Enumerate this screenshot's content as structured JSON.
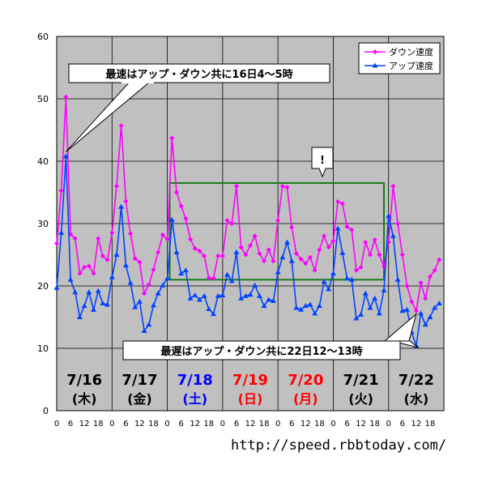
{
  "chart_data": {
    "type": "line",
    "ylim": [
      0,
      60
    ],
    "yticks": [
      0,
      10,
      20,
      30,
      40,
      50,
      60
    ],
    "x_range": [
      0,
      168
    ],
    "grid": true,
    "legend_position": "top-right",
    "colors": {
      "download": "#ff00ff",
      "upload": "#0044ff",
      "plot_bg": "#c0c0c0",
      "highlight": "#1a7a1a",
      "callout_bg": "#ffffff"
    },
    "day_ticks": [
      "0",
      "6",
      "12",
      "18"
    ],
    "days": [
      {
        "date": "7/16",
        "dow": "(木)",
        "color": "#000000"
      },
      {
        "date": "7/17",
        "dow": "(金)",
        "color": "#000000"
      },
      {
        "date": "7/18",
        "dow": "(土)",
        "color": "#0000ff"
      },
      {
        "date": "7/19",
        "dow": "(日)",
        "color": "#ff0000"
      },
      {
        "date": "7/20",
        "dow": "(月)",
        "color": "#ff0000"
      },
      {
        "date": "7/21",
        "dow": "(火)",
        "color": "#000000"
      },
      {
        "date": "7/22",
        "dow": "(水)",
        "color": "#000000"
      }
    ],
    "series": [
      {
        "name": "ダウン速度",
        "color": "#ff00ff",
        "marker": "diamond",
        "x": [
          0,
          2,
          4,
          6,
          8,
          10,
          12,
          14,
          16,
          18,
          20,
          22,
          24,
          26,
          28,
          30,
          32,
          34,
          36,
          38,
          40,
          42,
          44,
          46,
          48,
          50,
          52,
          54,
          56,
          58,
          60,
          62,
          64,
          66,
          68,
          70,
          72,
          74,
          76,
          78,
          80,
          82,
          84,
          86,
          88,
          90,
          92,
          94,
          96,
          98,
          100,
          102,
          104,
          106,
          108,
          110,
          112,
          114,
          116,
          118,
          120,
          122,
          124,
          126,
          128,
          130,
          132,
          134,
          136,
          138,
          140,
          142,
          144,
          146,
          148,
          150,
          152,
          154,
          156,
          158,
          160,
          162,
          164,
          166
        ],
        "y": [
          26.8,
          35.3,
          50.3,
          28.3,
          27.6,
          22,
          23,
          23.2,
          22,
          27.6,
          24.8,
          24.2,
          28.5,
          36,
          45.7,
          33.6,
          28.4,
          24.4,
          23.8,
          18.8,
          20.2,
          22.6,
          25.4,
          28.2,
          27.5,
          43.7,
          35,
          32.8,
          30.8,
          27.5,
          26,
          25.6,
          24.8,
          21.3,
          21.2,
          24.8,
          24.8,
          30.5,
          30,
          36,
          26.2,
          25,
          26.5,
          28,
          25.2,
          24,
          25.8,
          24,
          30.5,
          36,
          35.8,
          29.4,
          25.2,
          24.3,
          23.6,
          24.6,
          22.5,
          25.8,
          28,
          26.2,
          27.2,
          33.5,
          33.2,
          29.5,
          29,
          22.5,
          23,
          27,
          25,
          27.4,
          25,
          23,
          27,
          36,
          30,
          25,
          20,
          17.5,
          16,
          20.5,
          18,
          21.5,
          22.5,
          24.2
        ]
      },
      {
        "name": "アップ速度",
        "color": "#0044ff",
        "marker": "triangle",
        "x": [
          0,
          2,
          4,
          6,
          8,
          10,
          12,
          14,
          16,
          18,
          20,
          22,
          24,
          26,
          28,
          30,
          32,
          34,
          36,
          38,
          40,
          42,
          44,
          46,
          48,
          50,
          52,
          54,
          56,
          58,
          60,
          62,
          64,
          66,
          68,
          70,
          72,
          74,
          76,
          78,
          80,
          82,
          84,
          86,
          88,
          90,
          92,
          94,
          96,
          98,
          100,
          102,
          104,
          106,
          108,
          110,
          112,
          114,
          116,
          118,
          120,
          122,
          124,
          126,
          128,
          130,
          132,
          134,
          136,
          138,
          140,
          142,
          144,
          146,
          148,
          150,
          152,
          154,
          156,
          158,
          160,
          162,
          164,
          166
        ],
        "y": [
          19.7,
          28.5,
          40.8,
          21,
          19,
          15,
          16.8,
          19,
          16.2,
          19.2,
          17.2,
          17,
          21.4,
          25,
          32.7,
          23.3,
          20.5,
          16.6,
          17.5,
          12.8,
          13.8,
          16.9,
          18.8,
          20.1,
          21.2,
          30.6,
          25.4,
          22,
          22.5,
          18,
          18.5,
          17.8,
          18.4,
          16.3,
          15.5,
          18.4,
          18.5,
          21.8,
          20.8,
          25.4,
          18,
          18.4,
          18.6,
          20.1,
          18.4,
          16.8,
          17.8,
          17.6,
          22.2,
          24.6,
          27,
          24,
          16.5,
          16.2,
          16.8,
          17,
          15.6,
          16.8,
          20.7,
          19.5,
          22,
          29.2,
          25.3,
          21.2,
          21,
          14.8,
          15.4,
          18.8,
          16.5,
          18,
          15.6,
          19.3,
          31.2,
          28,
          21,
          16,
          16.2,
          12.6,
          10.4,
          15.6,
          13.8,
          15,
          16.5,
          17.2
        ]
      }
    ]
  },
  "legend": {
    "download": "ダウン速度",
    "upload": "アップ速度"
  },
  "annotations": {
    "max_note": "最速はアップ・ダウン共に16日4～5時",
    "min_note": "最遅はアップ・ダウン共に22日12～13時",
    "highlight_mark": "!"
  },
  "footer": {
    "url": "http://speed.rbbtoday.com/"
  }
}
